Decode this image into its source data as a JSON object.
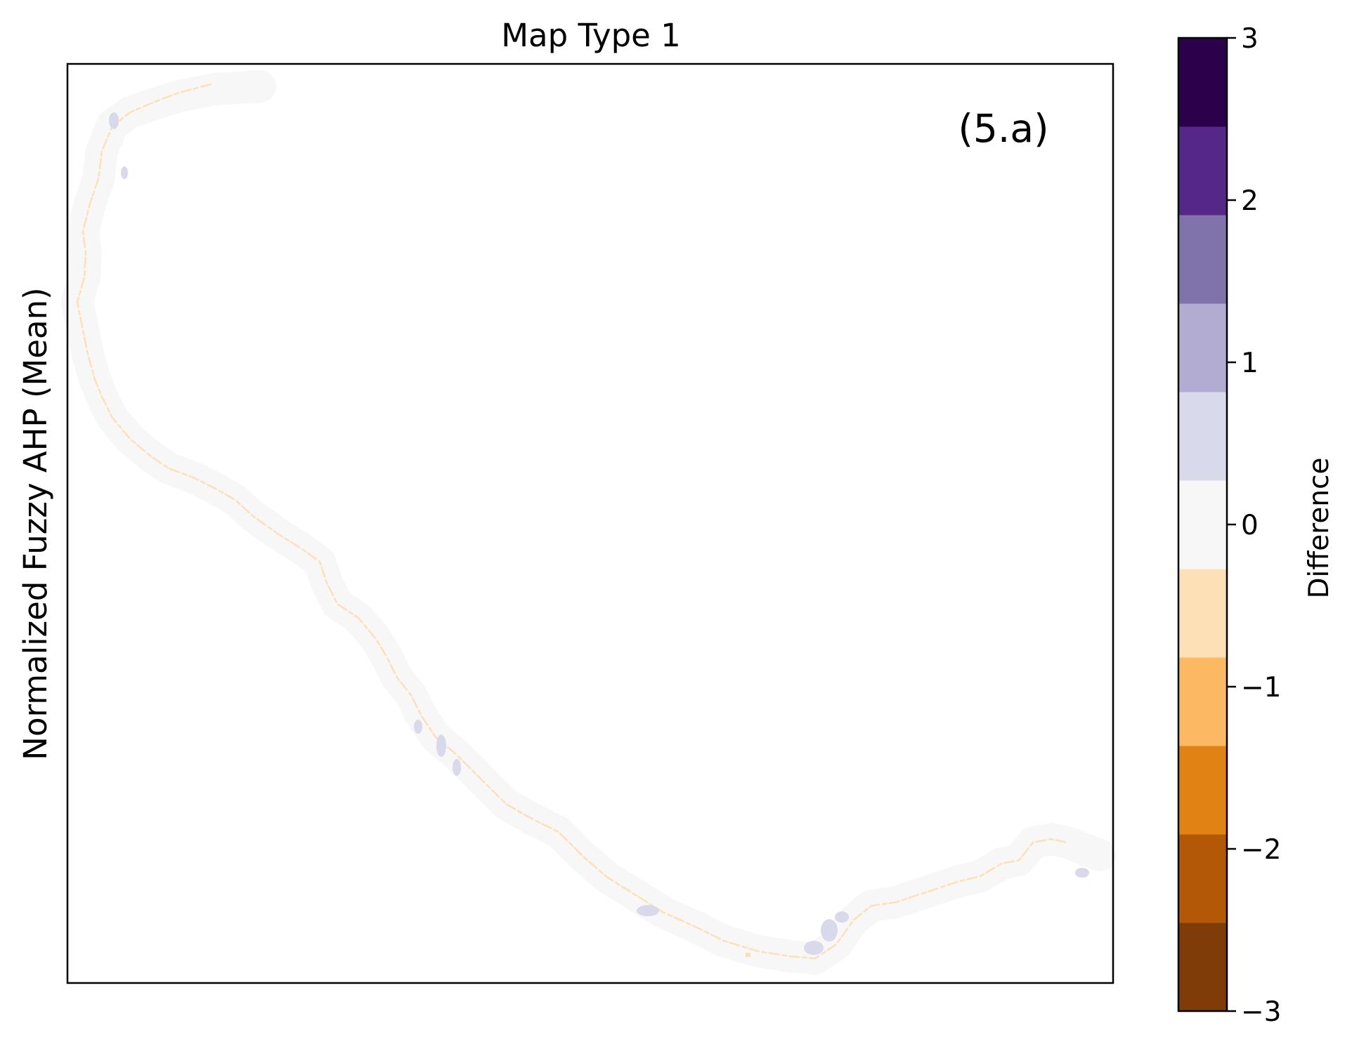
{
  "map": {
    "title": "Map Type 1",
    "ylabel": "Normalized Fuzzy AHP (Mean)",
    "panel_label": "(5.a)",
    "dominant_value": 0,
    "negative_patch_value": -0.5,
    "positive_patch_value": 0.5
  },
  "colorbar": {
    "label": "Difference",
    "range": [
      -3,
      3
    ],
    "ticks": [
      {
        "value": -3,
        "label": "−3"
      },
      {
        "value": -2,
        "label": "−2"
      },
      {
        "value": -1,
        "label": "−1"
      },
      {
        "value": 0,
        "label": "0"
      },
      {
        "value": 1,
        "label": "1"
      },
      {
        "value": 2,
        "label": "2"
      },
      {
        "value": 3,
        "label": "3"
      }
    ],
    "bins": [
      {
        "from": -3.0,
        "to": -2.4545,
        "color": "#7f3b08"
      },
      {
        "from": -2.4545,
        "to": -1.9091,
        "color": "#b35806"
      },
      {
        "from": -1.9091,
        "to": -1.3636,
        "color": "#e08214"
      },
      {
        "from": -1.3636,
        "to": -0.8182,
        "color": "#fdb863"
      },
      {
        "from": -0.8182,
        "to": -0.2727,
        "color": "#fee0b6"
      },
      {
        "from": -0.2727,
        "to": 0.2727,
        "color": "#f7f7f7"
      },
      {
        "from": 0.2727,
        "to": 0.8182,
        "color": "#d8daeb"
      },
      {
        "from": 0.8182,
        "to": 1.3636,
        "color": "#b2abd2"
      },
      {
        "from": 1.3636,
        "to": 1.9091,
        "color": "#8073ac"
      },
      {
        "from": 1.9091,
        "to": 2.4545,
        "color": "#542788"
      },
      {
        "from": 2.4545,
        "to": 3.0,
        "color": "#2d004b"
      }
    ]
  }
}
